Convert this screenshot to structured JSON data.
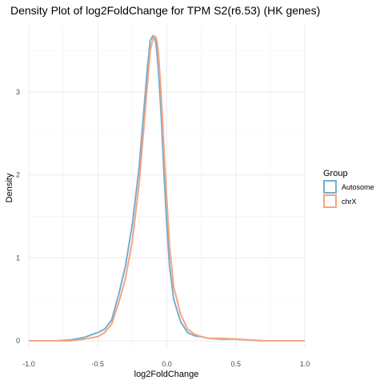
{
  "chart_data": {
    "type": "line",
    "subtype": "density",
    "title": "Density Plot of log2FoldChange for TPM S2(r6.53) (HK genes)",
    "xlabel": "log2FoldChange",
    "ylabel": "Density",
    "xlim": [
      -1.0,
      1.0
    ],
    "ylim": [
      0,
      3.8
    ],
    "x_ticks": [
      -1.0,
      -0.5,
      0.0,
      0.5,
      1.0
    ],
    "x_tick_labels": [
      "-1.0",
      "-0.5",
      "0.0",
      "0.5",
      "1.0"
    ],
    "y_ticks": [
      0,
      1,
      2,
      3
    ],
    "y_tick_labels": [
      "0",
      "1",
      "2",
      "3"
    ],
    "grid": true,
    "theme": "minimal",
    "legend": {
      "title": "Group",
      "position": "right",
      "entries": [
        "Autosome",
        "chrX"
      ]
    },
    "series": [
      {
        "name": "Autosome",
        "color": "#74add1",
        "x": [
          -1.0,
          -0.8,
          -0.7,
          -0.6,
          -0.5,
          -0.45,
          -0.4,
          -0.35,
          -0.3,
          -0.25,
          -0.2,
          -0.17,
          -0.14,
          -0.12,
          -0.1,
          -0.09,
          -0.08,
          -0.07,
          -0.06,
          -0.04,
          -0.02,
          0.0,
          0.02,
          0.05,
          0.1,
          0.15,
          0.2,
          0.25,
          0.3,
          0.4,
          0.5,
          0.6,
          0.7,
          0.8,
          1.0
        ],
        "values": [
          0,
          0.0,
          0.01,
          0.04,
          0.1,
          0.14,
          0.25,
          0.55,
          0.9,
          1.4,
          2.1,
          2.7,
          3.3,
          3.62,
          3.68,
          3.65,
          3.6,
          3.45,
          3.25,
          2.7,
          2.0,
          1.4,
          0.9,
          0.5,
          0.23,
          0.1,
          0.06,
          0.05,
          0.03,
          0.02,
          0.02,
          0.01,
          0.0,
          0.0,
          0
        ]
      },
      {
        "name": "chrX",
        "color": "#f4a582",
        "x": [
          -1.0,
          -0.8,
          -0.7,
          -0.6,
          -0.5,
          -0.45,
          -0.4,
          -0.35,
          -0.3,
          -0.25,
          -0.2,
          -0.17,
          -0.14,
          -0.12,
          -0.1,
          -0.09,
          -0.08,
          -0.07,
          -0.06,
          -0.04,
          -0.02,
          0.0,
          0.02,
          0.05,
          0.1,
          0.15,
          0.2,
          0.25,
          0.3,
          0.4,
          0.5,
          0.6,
          0.7,
          0.8,
          1.0
        ],
        "values": [
          0,
          0.0,
          0.0,
          0.02,
          0.05,
          0.1,
          0.2,
          0.45,
          0.75,
          1.2,
          1.9,
          2.5,
          3.1,
          3.5,
          3.64,
          3.66,
          3.67,
          3.6,
          3.45,
          2.95,
          2.3,
          1.7,
          1.15,
          0.65,
          0.32,
          0.14,
          0.08,
          0.05,
          0.03,
          0.03,
          0.02,
          0.01,
          0.0,
          0.0,
          0
        ]
      }
    ]
  }
}
